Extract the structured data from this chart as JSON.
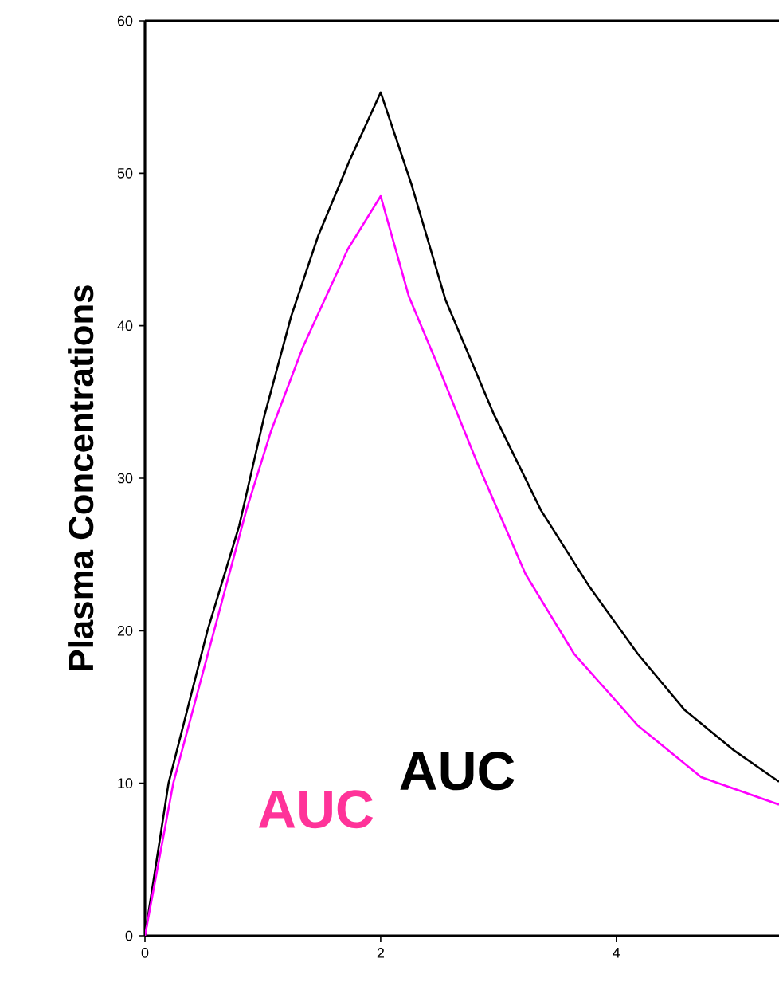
{
  "chart_data": {
    "type": "line",
    "ylabel": "Plasma Concentrations",
    "xlim": [
      0,
      5.38
    ],
    "ylim": [
      0,
      60
    ],
    "xticks": [
      0,
      2,
      4
    ],
    "yticks": [
      0,
      10,
      20,
      30,
      40,
      50,
      60
    ],
    "grid": false,
    "marker": "none",
    "line_style": "solid",
    "series": [
      {
        "color": "#000000",
        "x": [
          0,
          0.2,
          0.53,
          0.8,
          1.01,
          1.24,
          1.47,
          1.74,
          2,
          2.26,
          2.55,
          2.96,
          3.36,
          3.77,
          4.18,
          4.58,
          4.99,
          5.38
        ],
        "values": [
          0,
          10,
          20,
          26.9,
          34,
          40.6,
          45.9,
          50.9,
          55.3,
          49.3,
          41.7,
          34.2,
          27.9,
          22.9,
          18.5,
          14.8,
          12.2,
          10.1
        ]
      },
      {
        "color": "#ff00ff",
        "x": [
          0,
          0.24,
          0.5,
          0.68,
          0.86,
          1.07,
          1.34,
          1.72,
          2,
          2.24,
          2.49,
          2.82,
          3.23,
          3.64,
          4.18,
          4.72,
          5.38
        ],
        "values": [
          0,
          10,
          17.5,
          22.7,
          27.9,
          33.1,
          38.6,
          45,
          48.5,
          41.9,
          37.3,
          31,
          23.7,
          18.5,
          13.8,
          10.4,
          8.6
        ]
      }
    ],
    "annotations": [
      "AUC",
      "AUC"
    ]
  }
}
